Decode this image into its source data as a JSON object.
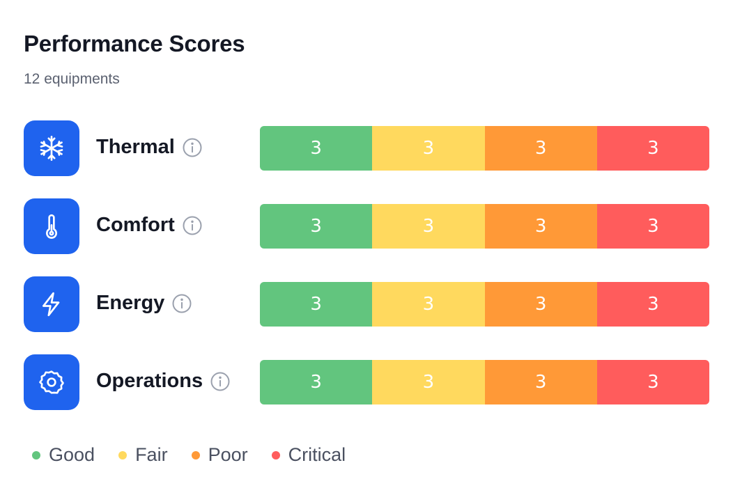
{
  "header": {
    "title": "Performance Scores",
    "subtitle": "12 equipments"
  },
  "colors": {
    "good": "#62c57e",
    "fair": "#ffd95e",
    "poor": "#ff9937",
    "critical": "#ff5c5c",
    "icon_bg": "#1f63ee"
  },
  "rows": [
    {
      "label": "Thermal",
      "icon": "snowflake-icon",
      "scores": {
        "good": "3",
        "fair": "3",
        "poor": "3",
        "critical": "3"
      }
    },
    {
      "label": "Comfort",
      "icon": "thermometer-icon",
      "scores": {
        "good": "3",
        "fair": "3",
        "poor": "3",
        "critical": "3"
      }
    },
    {
      "label": "Energy",
      "icon": "lightning-icon",
      "scores": {
        "good": "3",
        "fair": "3",
        "poor": "3",
        "critical": "3"
      }
    },
    {
      "label": "Operations",
      "icon": "gear-icon",
      "scores": {
        "good": "3",
        "fair": "3",
        "poor": "3",
        "critical": "3"
      }
    }
  ],
  "legend": [
    {
      "label": "Good"
    },
    {
      "label": "Fair"
    },
    {
      "label": "Poor"
    },
    {
      "label": "Critical"
    }
  ]
}
